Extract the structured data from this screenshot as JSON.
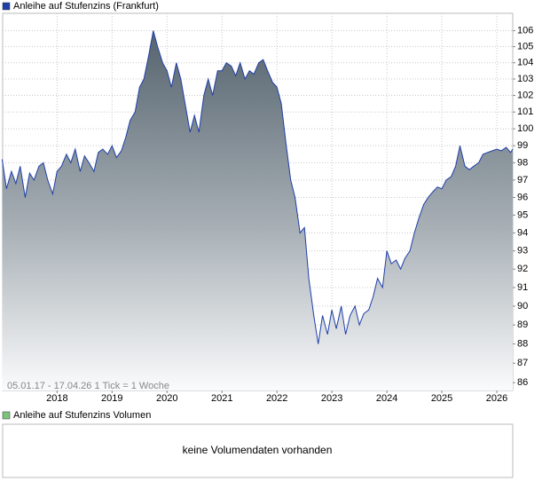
{
  "chart_data": {
    "type": "area",
    "x": [
      2017.0,
      2017.08,
      2017.17,
      2017.25,
      2017.33,
      2017.42,
      2017.5,
      2017.58,
      2017.67,
      2017.75,
      2017.83,
      2017.92,
      2018.0,
      2018.08,
      2018.17,
      2018.25,
      2018.33,
      2018.42,
      2018.5,
      2018.58,
      2018.67,
      2018.75,
      2018.83,
      2018.92,
      2019.0,
      2019.08,
      2019.17,
      2019.25,
      2019.33,
      2019.42,
      2019.5,
      2019.58,
      2019.67,
      2019.75,
      2019.83,
      2019.92,
      2020.0,
      2020.08,
      2020.17,
      2020.25,
      2020.33,
      2020.42,
      2020.5,
      2020.58,
      2020.67,
      2020.75,
      2020.83,
      2020.92,
      2021.0,
      2021.08,
      2021.17,
      2021.25,
      2021.33,
      2021.42,
      2021.5,
      2021.58,
      2021.67,
      2021.75,
      2021.83,
      2021.92,
      2022.0,
      2022.08,
      2022.17,
      2022.25,
      2022.33,
      2022.42,
      2022.5,
      2022.58,
      2022.67,
      2022.75,
      2022.83,
      2022.92,
      2023.0,
      2023.08,
      2023.17,
      2023.25,
      2023.33,
      2023.42,
      2023.5,
      2023.58,
      2023.67,
      2023.75,
      2023.83,
      2023.92,
      2024.0,
      2024.08,
      2024.17,
      2024.25,
      2024.33,
      2024.42,
      2024.5,
      2024.58,
      2024.67,
      2024.75,
      2024.83,
      2024.92,
      2025.0,
      2025.08,
      2025.17,
      2025.25,
      2025.33,
      2025.42,
      2025.5,
      2025.58,
      2025.67,
      2025.75,
      2025.83,
      2025.92,
      2026.0,
      2026.08,
      2026.17,
      2026.25,
      2026.29
    ],
    "series": [
      {
        "name": "Anleihe auf Stufenzins (Frankfurt)",
        "color": "#1f3fa8",
        "values": [
          98.2,
          96.5,
          97.5,
          96.8,
          97.8,
          96.0,
          97.4,
          97.0,
          97.8,
          98.0,
          97.0,
          96.2,
          97.5,
          97.8,
          98.5,
          98.0,
          98.8,
          97.5,
          98.4,
          98.0,
          97.5,
          98.6,
          98.8,
          98.5,
          99.0,
          98.3,
          98.7,
          99.5,
          100.5,
          101.0,
          102.5,
          103.0,
          104.5,
          106.0,
          105.0,
          104.0,
          103.5,
          102.5,
          104.0,
          103.0,
          101.5,
          99.8,
          100.8,
          99.8,
          102.0,
          103.0,
          102.0,
          103.5,
          103.5,
          104.0,
          103.8,
          103.2,
          104.0,
          103.0,
          103.5,
          103.3,
          104.0,
          104.2,
          103.5,
          102.8,
          102.5,
          101.5,
          99.0,
          97.0,
          96.0,
          94.0,
          94.3,
          91.5,
          89.5,
          88.0,
          89.5,
          88.5,
          89.8,
          88.8,
          90.0,
          88.5,
          89.5,
          90.0,
          89.0,
          89.6,
          89.8,
          90.5,
          91.5,
          91.0,
          93.0,
          92.3,
          92.5,
          92.0,
          92.6,
          93.0,
          94.0,
          94.8,
          95.6,
          96.0,
          96.3,
          96.6,
          96.5,
          97.0,
          97.2,
          97.8,
          99.0,
          97.8,
          97.6,
          97.8,
          98.0,
          98.5,
          98.6,
          98.7,
          98.8,
          98.7,
          98.9,
          98.6,
          98.8
        ]
      }
    ],
    "xlim": [
      2017.01,
      2026.29
    ],
    "xticks": [
      2018,
      2019,
      2020,
      2021,
      2022,
      2023,
      2024,
      2025,
      2026
    ],
    "ylim": [
      85.6,
      107.1
    ],
    "yticks": [
      86,
      87,
      88,
      89,
      90,
      91,
      92,
      93,
      94,
      95,
      96,
      97,
      98,
      99,
      100,
      101,
      102,
      103,
      104,
      105,
      106
    ],
    "log_scale": true,
    "grid": true,
    "annotation": "05.01.17 - 17.04.26   1 Tick = 1 Woche"
  },
  "volume_panel": {
    "legend": "Anleihe auf Stufenzins Volumen",
    "color": "#7cc47c",
    "message": "keine Volumendaten vorhanden"
  }
}
